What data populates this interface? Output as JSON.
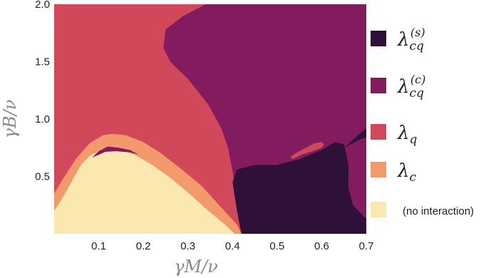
{
  "chart_data": {
    "type": "heatmap",
    "title": "",
    "xlabel": "γM/ν",
    "ylabel": "γB/ν",
    "xlim": [
      0.0,
      0.7
    ],
    "ylim": [
      0.0,
      2.0
    ],
    "x_ticks": [
      "0.1",
      "0.2",
      "0.3",
      "0.4",
      "0.5",
      "0.6",
      "0.7"
    ],
    "x_tick_values": [
      0.1,
      0.2,
      0.3,
      0.4,
      0.5,
      0.6,
      0.7
    ],
    "y_ticks": [
      "0.5",
      "1.0",
      "1.5",
      "2.0"
    ],
    "y_tick_values": [
      0.5,
      1.0,
      1.5,
      2.0
    ],
    "grid": false,
    "legend_position": "right",
    "regions": [
      {
        "key": "cq_s",
        "label_base": "λ",
        "label_sub": "cq",
        "label_sup": "(s)",
        "color": "#2e1038"
      },
      {
        "key": "cq_c",
        "label_base": "λ",
        "label_sub": "cq",
        "label_sup": "(c)",
        "color": "#821c5f"
      },
      {
        "key": "q",
        "label_base": "λ",
        "label_sub": "q",
        "label_sup": "",
        "color": "#d0485a"
      },
      {
        "key": "c",
        "label_base": "λ",
        "label_sub": "c",
        "label_sup": "",
        "color": "#f29a6b"
      },
      {
        "key": "none",
        "label_base": "(no interaction)",
        "label_sub": "",
        "label_sup": "",
        "color": "#fbe8b0"
      }
    ],
    "boundaries": {
      "cq_c_region": [
        [
          0.34,
          2.0
        ],
        [
          0.29,
          1.9
        ],
        [
          0.25,
          1.78
        ],
        [
          0.245,
          1.62
        ],
        [
          0.26,
          1.5
        ],
        [
          0.3,
          1.35
        ],
        [
          0.345,
          1.13
        ],
        [
          0.375,
          0.92
        ],
        [
          0.39,
          0.75
        ],
        [
          0.4,
          0.55
        ],
        [
          0.42,
          0.0
        ],
        [
          0.7,
          0.0
        ],
        [
          0.7,
          2.0
        ]
      ],
      "cq_s_region": [
        [
          0.42,
          0.0
        ],
        [
          0.41,
          0.2
        ],
        [
          0.4,
          0.45
        ],
        [
          0.41,
          0.56
        ],
        [
          0.45,
          0.6
        ],
        [
          0.5,
          0.6
        ],
        [
          0.55,
          0.65
        ],
        [
          0.6,
          0.73
        ],
        [
          0.63,
          0.8
        ],
        [
          0.65,
          0.78
        ],
        [
          0.66,
          0.6
        ],
        [
          0.66,
          0.4
        ],
        [
          0.67,
          0.25
        ],
        [
          0.7,
          0.13
        ],
        [
          0.7,
          0.0
        ]
      ],
      "cq_s_wedge": [
        [
          0.645,
          0.74
        ],
        [
          0.66,
          0.78
        ],
        [
          0.67,
          0.82
        ],
        [
          0.7,
          0.92
        ],
        [
          0.7,
          0.84
        ],
        [
          0.69,
          0.83
        ],
        [
          0.675,
          0.8
        ],
        [
          0.66,
          0.77
        ]
      ],
      "cq_c_inner": [
        [
          0.7,
          0.78
        ],
        [
          0.685,
          0.76
        ],
        [
          0.675,
          0.68
        ],
        [
          0.67,
          0.55
        ],
        [
          0.675,
          0.42
        ],
        [
          0.69,
          0.3
        ],
        [
          0.7,
          0.22
        ]
      ],
      "q_blob": [
        [
          0.535,
          0.65
        ],
        [
          0.555,
          0.69
        ],
        [
          0.58,
          0.72
        ],
        [
          0.6,
          0.75
        ],
        [
          0.605,
          0.78
        ],
        [
          0.6,
          0.8
        ],
        [
          0.585,
          0.79
        ],
        [
          0.565,
          0.75
        ],
        [
          0.545,
          0.71
        ],
        [
          0.53,
          0.67
        ]
      ],
      "c_region": [
        [
          0.0,
          0.0
        ],
        [
          0.0,
          0.35
        ],
        [
          0.02,
          0.48
        ],
        [
          0.05,
          0.66
        ],
        [
          0.08,
          0.79
        ],
        [
          0.11,
          0.86
        ],
        [
          0.13,
          0.87
        ],
        [
          0.16,
          0.86
        ],
        [
          0.2,
          0.8
        ],
        [
          0.24,
          0.7
        ],
        [
          0.28,
          0.58
        ],
        [
          0.33,
          0.42
        ],
        [
          0.37,
          0.25
        ],
        [
          0.41,
          0.08
        ],
        [
          0.42,
          0.0
        ]
      ],
      "none_region": [
        [
          0.0,
          0.0
        ],
        [
          0.0,
          0.2
        ],
        [
          0.02,
          0.32
        ],
        [
          0.04,
          0.46
        ],
        [
          0.06,
          0.6
        ],
        [
          0.08,
          0.68
        ],
        [
          0.1,
          0.72
        ],
        [
          0.12,
          0.74
        ],
        [
          0.15,
          0.73
        ],
        [
          0.18,
          0.69
        ],
        [
          0.22,
          0.6
        ],
        [
          0.26,
          0.49
        ],
        [
          0.3,
          0.36
        ],
        [
          0.34,
          0.22
        ],
        [
          0.38,
          0.09
        ],
        [
          0.405,
          0.0
        ]
      ],
      "cq_c_sliver": [
        [
          0.085,
          0.665
        ],
        [
          0.1,
          0.72
        ],
        [
          0.12,
          0.76
        ],
        [
          0.145,
          0.75
        ],
        [
          0.17,
          0.73
        ],
        [
          0.19,
          0.69
        ],
        [
          0.17,
          0.71
        ],
        [
          0.14,
          0.72
        ],
        [
          0.115,
          0.715
        ],
        [
          0.095,
          0.68
        ]
      ]
    }
  }
}
